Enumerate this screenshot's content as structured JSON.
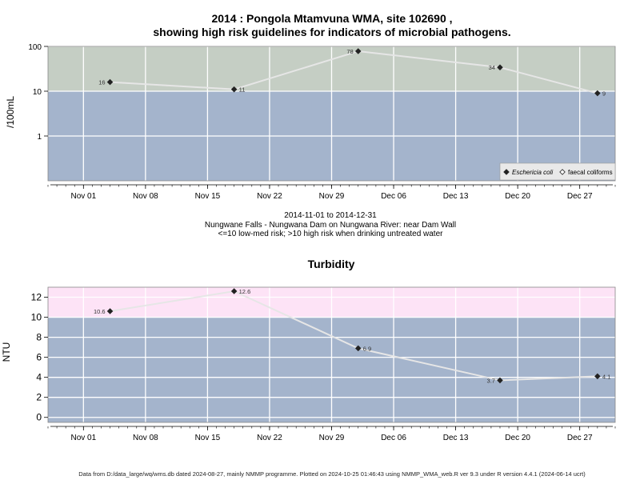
{
  "header": {
    "title_line1": "2014 : Pongola Mtamvuna WMA, site 102690 ,",
    "title_line2": "showing high risk guidelines for indicators of microbial pathogens."
  },
  "info": {
    "date_range": "2014-11-01 to 2014-12-31",
    "location": "Nungwane Falls - Nungwana Dam on Nungwana River: near Dam Wall",
    "guideline_note": "<=10 low-med risk; >10 high risk when drinking untreated water"
  },
  "footer": {
    "text": "Data from D:/data_large/wq/wms.db dated 2024-08-27, mainly NMMP programme. Plotted on 2024-10-25 01:46:43 using NMMP_WMA_web.R ver 9.3 under R version 4.4.1 (2024-06-14 ucrt)"
  },
  "colors": {
    "high_risk_band_micro": "#c5cec4",
    "low_risk_band": "#a4b4cc",
    "high_risk_band_turbidity": "#fde3f6",
    "line": "#e6e6e6",
    "grid": "#ffffff"
  },
  "chart_data": [
    {
      "type": "line",
      "title": "",
      "ylabel": "/100mL",
      "yscale": "log",
      "ylim": [
        0.1,
        100
      ],
      "yticks": [
        1,
        10,
        100
      ],
      "ytick_labels": [
        "1",
        "10",
        "100"
      ],
      "high_risk_threshold": 10,
      "xlim": [
        "2014-10-28",
        "2014-12-31"
      ],
      "xticks": [
        "2014-11-01",
        "2014-11-08",
        "2014-11-15",
        "2014-11-22",
        "2014-11-29",
        "2014-12-06",
        "2014-12-13",
        "2014-12-20",
        "2014-12-27"
      ],
      "xtick_labels": [
        "Nov 01",
        "Nov 08",
        "Nov 15",
        "Nov 22",
        "Nov 29",
        "Dec 06",
        "Dec 13",
        "Dec 20",
        "Dec 27"
      ],
      "grid": true,
      "legend_position": "bottom-right",
      "series": [
        {
          "name": "Eschericia coli",
          "marker": "filled-diamond",
          "x": [
            "2014-11-04",
            "2014-11-18",
            "2014-12-02",
            "2014-12-18",
            "2014-12-29"
          ],
          "y": [
            16,
            11,
            78,
            34,
            9
          ],
          "labels": [
            "16",
            "11",
            "78",
            "34",
            "9"
          ]
        },
        {
          "name": "faecal coliforms",
          "marker": "open-diamond",
          "x": [],
          "y": []
        }
      ]
    },
    {
      "type": "line",
      "title": "Turbidity",
      "ylabel": "NTU",
      "ylim": [
        -0.5,
        13
      ],
      "yticks": [
        0,
        2,
        4,
        6,
        8,
        10,
        12
      ],
      "ytick_labels": [
        "0",
        "2",
        "4",
        "6",
        "8",
        "10",
        "12"
      ],
      "high_risk_threshold": 10,
      "xlim": [
        "2014-10-28",
        "2014-12-31"
      ],
      "xticks": [
        "2014-11-01",
        "2014-11-08",
        "2014-11-15",
        "2014-11-22",
        "2014-11-29",
        "2014-12-06",
        "2014-12-13",
        "2014-12-20",
        "2014-12-27"
      ],
      "xtick_labels": [
        "Nov 01",
        "Nov 08",
        "Nov 15",
        "Nov 22",
        "Nov 29",
        "Dec 06",
        "Dec 13",
        "Dec 20",
        "Dec 27"
      ],
      "grid": true,
      "series": [
        {
          "marker": "filled-diamond",
          "x": [
            "2014-11-04",
            "2014-11-18",
            "2014-12-02",
            "2014-12-18",
            "2014-12-29"
          ],
          "y": [
            10.6,
            12.6,
            6.9,
            3.7,
            4.1
          ],
          "labels": [
            "10.6",
            "12.6",
            "6.9",
            "3.7",
            "4.1"
          ]
        }
      ]
    }
  ]
}
